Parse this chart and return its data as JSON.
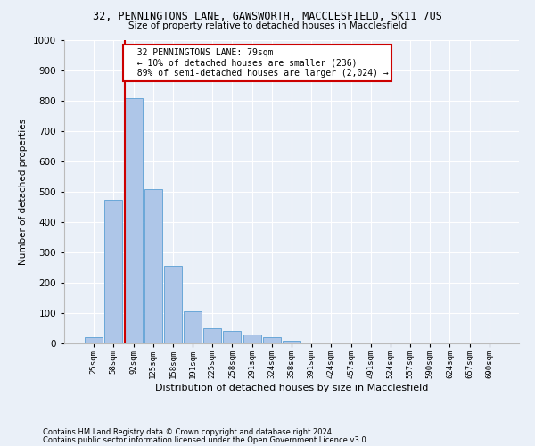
{
  "title_line1": "32, PENNINGTONS LANE, GAWSWORTH, MACCLESFIELD, SK11 7US",
  "title_line2": "Size of property relative to detached houses in Macclesfield",
  "xlabel": "Distribution of detached houses by size in Macclesfield",
  "ylabel": "Number of detached properties",
  "footnote1": "Contains HM Land Registry data © Crown copyright and database right 2024.",
  "footnote2": "Contains public sector information licensed under the Open Government Licence v3.0.",
  "bin_labels": [
    "25sqm",
    "58sqm",
    "92sqm",
    "125sqm",
    "158sqm",
    "191sqm",
    "225sqm",
    "258sqm",
    "291sqm",
    "324sqm",
    "358sqm",
    "391sqm",
    "424sqm",
    "457sqm",
    "491sqm",
    "524sqm",
    "557sqm",
    "590sqm",
    "624sqm",
    "657sqm",
    "690sqm"
  ],
  "bar_values": [
    20,
    475,
    810,
    510,
    255,
    105,
    50,
    40,
    30,
    20,
    10,
    0,
    0,
    0,
    0,
    0,
    0,
    0,
    0,
    0,
    0
  ],
  "bar_color": "#aec6e8",
  "bar_edge_color": "#5a9fd4",
  "vline_color": "#cc0000",
  "ylim": [
    0,
    1000
  ],
  "yticks": [
    0,
    100,
    200,
    300,
    400,
    500,
    600,
    700,
    800,
    900,
    1000
  ],
  "bg_color": "#eaf0f8",
  "grid_color": "#ffffff",
  "annotation_text": "  32 PENNINGTONS LANE: 79sqm\n  ← 10% of detached houses are smaller (236)\n  89% of semi-detached houses are larger (2,024) →",
  "annotation_box_color": "#ffffff",
  "annotation_box_edge": "#cc0000",
  "vline_position": 1.55
}
